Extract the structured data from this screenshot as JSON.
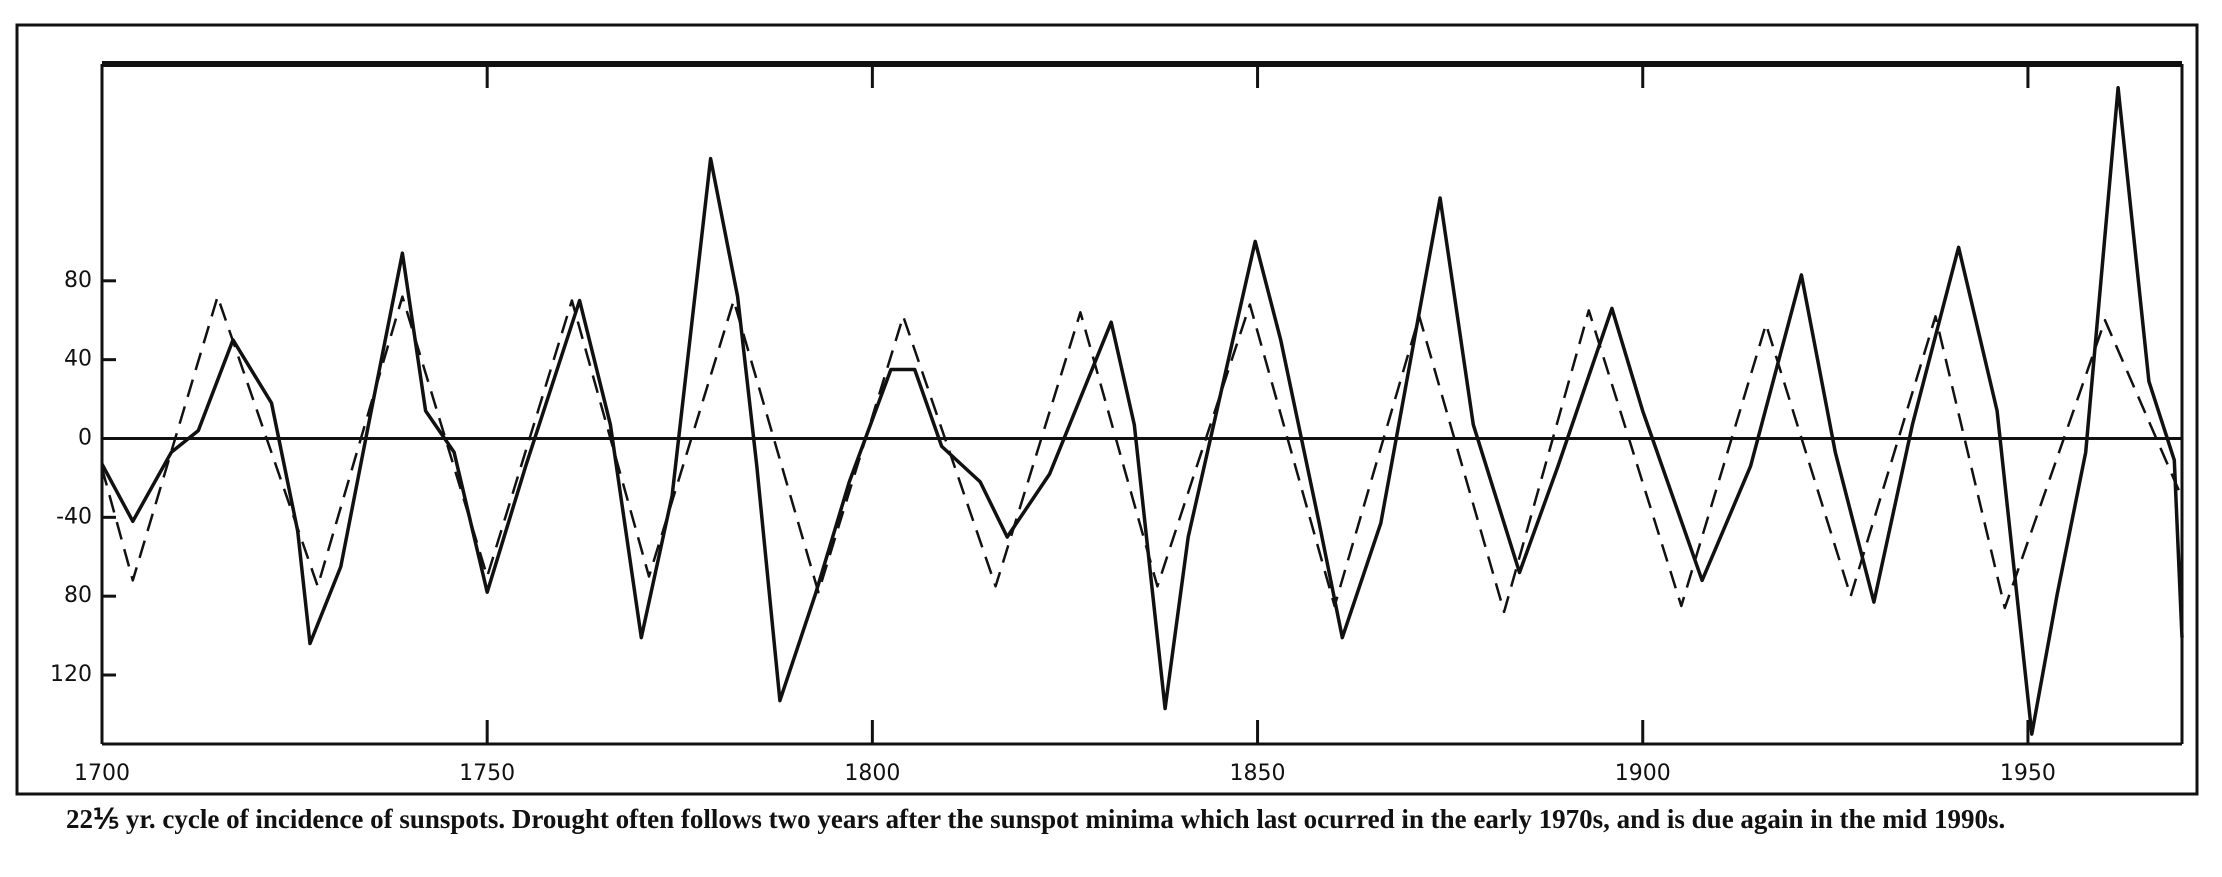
{
  "chart_data": {
    "type": "line",
    "caption": "22⅕ yr. cycle of incidence of sunspots. Drought often follows two years after the sunspot minima which last ocurred in the early 1970s, and is due again in the mid 1990s.",
    "xlim": [
      1700,
      1970
    ],
    "xticks": [
      1700,
      1750,
      1800,
      1850,
      1900,
      1950
    ],
    "ylim": [
      -155,
      190
    ],
    "yticks": [
      {
        "value": -120,
        "label": "120"
      },
      {
        "value": -80,
        "label": "80"
      },
      -40,
      0,
      40,
      80
    ],
    "series": [
      {
        "color": "#111111",
        "dashed": false,
        "x": [
          1700,
          1704,
          1709,
          1712.5,
          1717,
          1722,
          1725.4,
          1727,
          1731,
          1734.6,
          1739,
          1742,
          1745.7,
          1750,
          1755,
          1762,
          1766,
          1770,
          1774,
          1779,
          1782.5,
          1785,
          1788,
          1792.6,
          1797,
          1802.4,
          1805.5,
          1809,
          1814,
          1817.5,
          1823,
          1831,
          1834,
          1838,
          1841,
          1849.7,
          1853,
          1858,
          1861,
          1866,
          1873.7,
          1878,
          1884,
          1889,
          1896,
          1900,
          1907.7,
          1914,
          1920.6,
          1925,
          1930,
          1935,
          1941,
          1946,
          1950.5,
          1953.8,
          1957.5,
          1961.7,
          1965.7,
          1969,
          1970
        ],
        "values": [
          -13,
          -42,
          -7,
          4,
          50,
          18,
          -47,
          -104,
          -65,
          7,
          94,
          14,
          -7,
          -78,
          -14,
          70,
          7,
          -101,
          -29,
          142,
          72,
          -14,
          -133,
          -79,
          -22,
          35,
          35,
          -4,
          -22,
          -50,
          -18,
          59,
          7,
          -137,
          -50,
          100,
          50,
          -43,
          -101,
          -43,
          122,
          7,
          -68,
          -14,
          66,
          14,
          -72,
          -14,
          83,
          -7,
          -83,
          7,
          97,
          14,
          -150,
          -79,
          -7,
          178,
          29,
          -11,
          -101
        ]
      },
      {
        "color": "#111111",
        "dashed": true,
        "x": [
          1700,
          1704,
          1715,
          1728,
          1739,
          1750,
          1761,
          1771,
          1782,
          1793,
          1804,
          1816,
          1827,
          1837,
          1849,
          1860,
          1871,
          1882,
          1893,
          1905,
          1916,
          1927,
          1938,
          1947,
          1960,
          1970
        ],
        "values": [
          -15,
          -72,
          72,
          -75,
          72,
          -70,
          70,
          -70,
          70,
          -78,
          62,
          -75,
          64,
          -75,
          68,
          -85,
          62,
          -88,
          65,
          -85,
          58,
          -80,
          62,
          -86,
          60,
          -30
        ]
      }
    ]
  }
}
